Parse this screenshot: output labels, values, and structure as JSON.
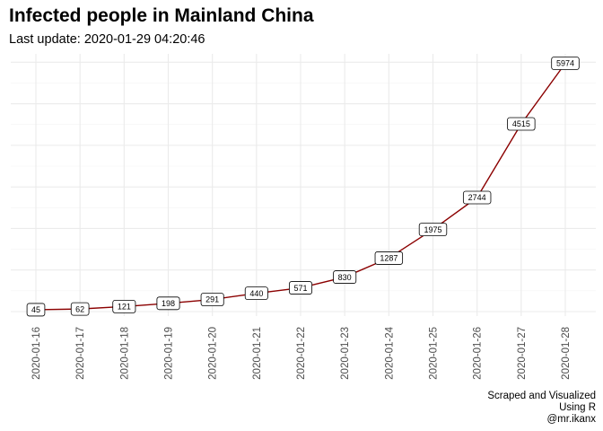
{
  "chart_data": {
    "type": "line",
    "title": "Infected people in Mainland China",
    "subtitle": "Last update: 2020-01-29 04:20:46",
    "categories": [
      "2020-01-16",
      "2020-01-17",
      "2020-01-18",
      "2020-01-19",
      "2020-01-20",
      "2020-01-21",
      "2020-01-22",
      "2020-01-23",
      "2020-01-24",
      "2020-01-25",
      "2020-01-26",
      "2020-01-27",
      "2020-01-28"
    ],
    "values": [
      45,
      62,
      121,
      198,
      291,
      440,
      571,
      830,
      1287,
      1975,
      2744,
      4515,
      5974
    ],
    "caption_lines": [
      "Scraped and Visualized",
      "Using R",
      "@mr.ikanx"
    ],
    "xlabel": "",
    "ylabel": "",
    "y_axis_labels_visible": false,
    "ylim": [
      0,
      6000
    ],
    "x_tick_rotation": "vertical",
    "grid": true,
    "legend": "none",
    "colors": {
      "line": "#8b0000",
      "grid": "#ebebeb",
      "label_border": "#000000",
      "background": "#ffffff"
    }
  }
}
